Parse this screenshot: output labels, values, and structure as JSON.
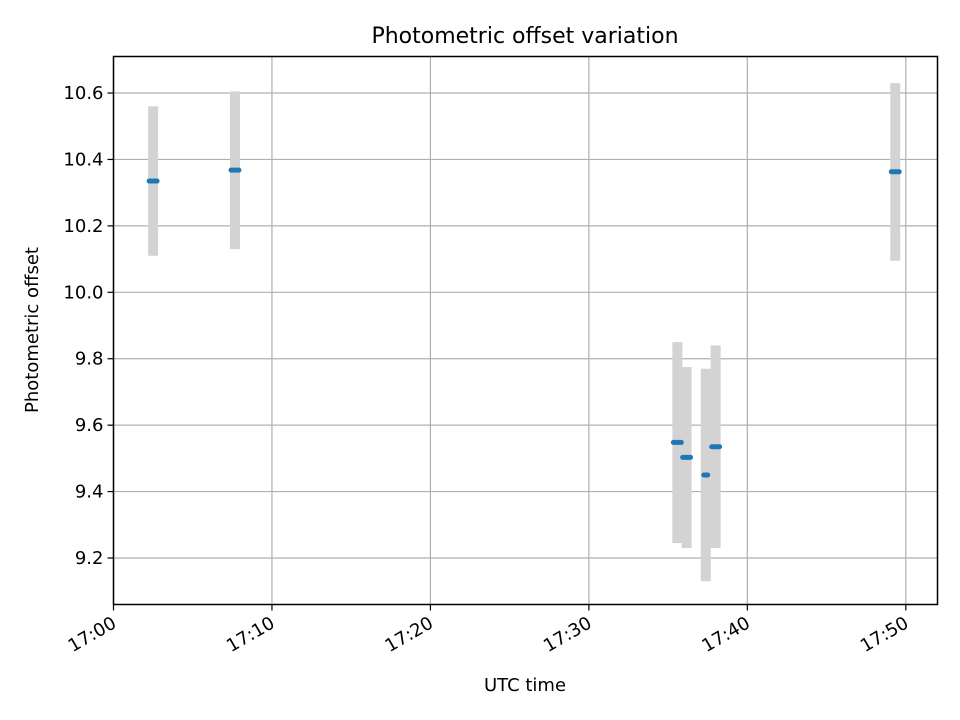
{
  "chart_data": {
    "type": "scatter",
    "title": "Photometric offset variation",
    "xlabel": "UTC time",
    "ylabel": "Photometric offset",
    "xlim": [
      "17:00",
      "17:52"
    ],
    "ylim": [
      9.06,
      10.71
    ],
    "x_ticks": [
      "17:00",
      "17:10",
      "17:20",
      "17:30",
      "17:40",
      "17:50"
    ],
    "y_ticks": [
      9.2,
      9.4,
      9.6,
      9.8,
      10.0,
      10.2,
      10.4,
      10.6
    ],
    "y_tick_labels": [
      "9.2",
      "9.4",
      "9.6",
      "9.8",
      "10.0",
      "10.2",
      "10.4",
      "10.6"
    ],
    "grid": true,
    "series": [
      {
        "marker_color": "#1f77b4",
        "errorbar_color": "#d3d3d3",
        "points": [
          {
            "x_start": "17:02:15",
            "x_end": "17:02:45",
            "y": 10.335,
            "err_low": 10.11,
            "err_high": 10.56
          },
          {
            "x_start": "17:07:25",
            "x_end": "17:07:55",
            "y": 10.368,
            "err_low": 10.13,
            "err_high": 10.605
          },
          {
            "x_start": "17:35:20",
            "x_end": "17:35:50",
            "y": 9.548,
            "err_low": 9.245,
            "err_high": 9.85
          },
          {
            "x_start": "17:35:55",
            "x_end": "17:36:25",
            "y": 9.503,
            "err_low": 9.23,
            "err_high": 9.775
          },
          {
            "x_start": "17:37:15",
            "x_end": "17:37:30",
            "y": 9.45,
            "err_low": 9.13,
            "err_high": 9.77
          },
          {
            "x_start": "17:37:45",
            "x_end": "17:38:15",
            "y": 9.535,
            "err_low": 9.23,
            "err_high": 9.84
          },
          {
            "x_start": "17:49:05",
            "x_end": "17:49:35",
            "y": 10.363,
            "err_low": 10.095,
            "err_high": 10.63
          }
        ]
      }
    ]
  }
}
